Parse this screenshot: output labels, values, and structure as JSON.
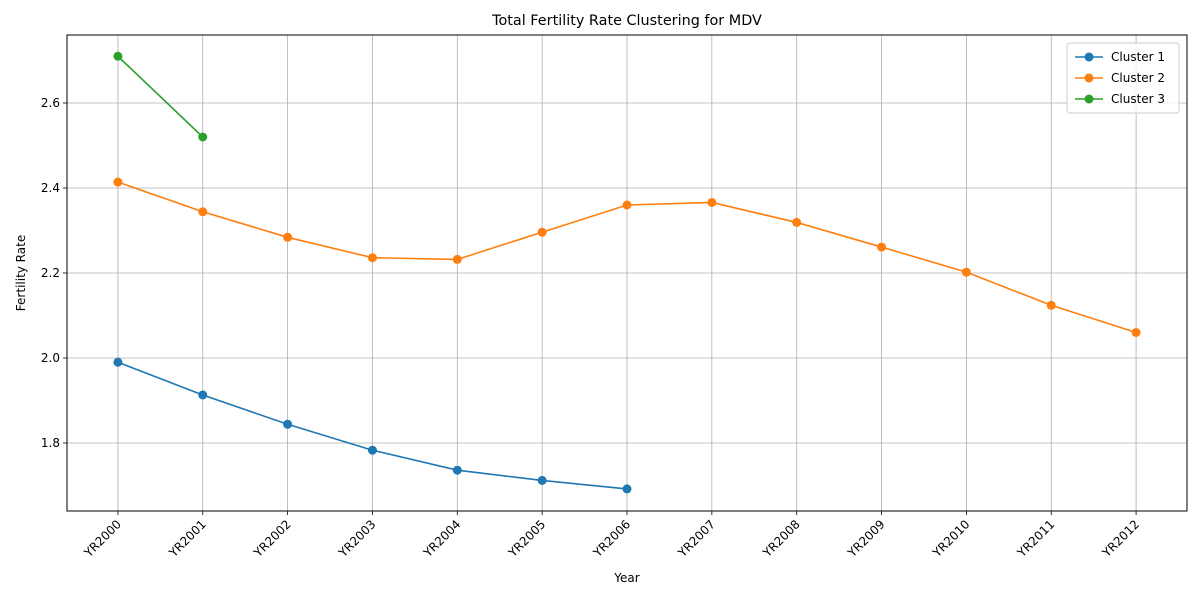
{
  "chart_data": {
    "type": "line",
    "title": "Total Fertility Rate Clustering for MDV",
    "xlabel": "Year",
    "ylabel": "Fertility Rate",
    "categories": [
      "YR2000",
      "YR2001",
      "YR2002",
      "YR2003",
      "YR2004",
      "YR2005",
      "YR2006",
      "YR2007",
      "YR2008",
      "YR2009",
      "YR2010",
      "YR2011",
      "YR2012"
    ],
    "ylim": [
      1.64,
      2.76
    ],
    "yticks": [
      1.8,
      2.0,
      2.2,
      2.4,
      2.6
    ],
    "ytick_labels": [
      "1.8",
      "2.0",
      "2.2",
      "2.4",
      "2.6"
    ],
    "grid": true,
    "legend_position": "top-right",
    "series": [
      {
        "name": "Cluster 1",
        "color": "#1f77b4",
        "values": [
          1.99,
          1.913,
          1.844,
          1.783,
          1.736,
          1.712,
          1.692,
          null,
          null,
          null,
          null,
          null,
          null
        ]
      },
      {
        "name": "Cluster 2",
        "color": "#ff7f0e",
        "values": [
          2.414,
          2.344,
          2.284,
          2.236,
          2.232,
          2.296,
          2.36,
          2.366,
          2.319,
          2.261,
          2.202,
          2.124,
          2.06
        ]
      },
      {
        "name": "Cluster 3",
        "color": "#2ca02c",
        "values": [
          2.71,
          2.52,
          null,
          null,
          null,
          null,
          null,
          null,
          null,
          null,
          null,
          null,
          null
        ]
      }
    ]
  }
}
